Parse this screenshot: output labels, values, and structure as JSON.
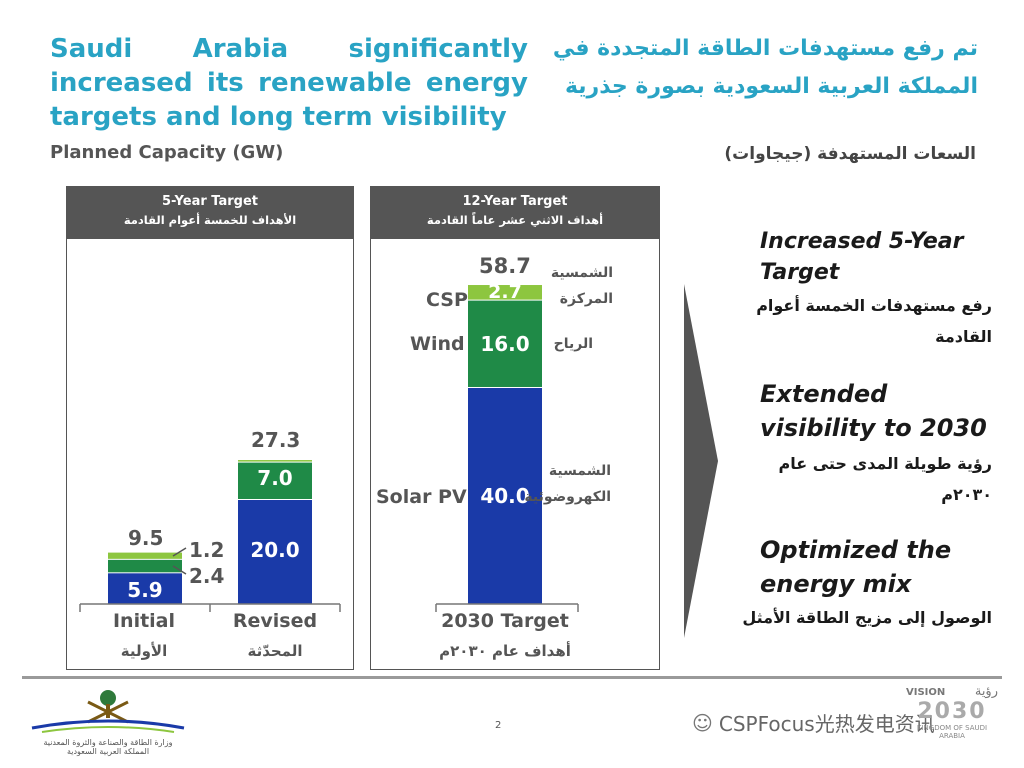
{
  "title_en": "Saudi Arabia significantly increased its renewable energy targets and long term visibility",
  "title_ar": "تم رفع مستهدفات الطاقة المتجددة في المملكة العربية السعودية بصورة جذرية",
  "subtitle_en": "Planned Capacity (GW)",
  "subtitle_ar": "السعات المستهدفة (جيجاوات)",
  "panels": {
    "five_year": {
      "title_en": "5-Year Target",
      "title_ar": "الأهداف للخمسة أعوام القادمة"
    },
    "twelve_year": {
      "title_en": "12-Year Target",
      "title_ar": "أهداف الاثني عشر عاماً القادمة"
    }
  },
  "chart_data": [
    {
      "type": "bar",
      "stacked": true,
      "categories": [
        "Initial",
        "Revised"
      ],
      "categories_ar": [
        "الأولية",
        "المحدّثة"
      ],
      "series": [
        {
          "values": [
            5.9,
            20.0
          ],
          "labels": [
            "5.9",
            "20.0"
          ],
          "color": "#1a3aa8"
        },
        {
          "values": [
            2.4,
            7.0
          ],
          "labels": [
            "2.4",
            "7.0"
          ],
          "color": "#1f8a47"
        },
        {
          "values": [
            1.2,
            0.3
          ],
          "labels": [
            "1.2",
            ""
          ],
          "color": "#8dc63f"
        }
      ],
      "totals": [
        "9.5",
        "27.3"
      ]
    },
    {
      "type": "bar",
      "stacked": true,
      "categories": [
        "2030 Target"
      ],
      "categories_ar": [
        "أهداف عام ٢٠٣٠م"
      ],
      "series": [
        {
          "name": "Solar PV",
          "name_ar": "الشمسية الكهروضوئية",
          "values": [
            40.0
          ],
          "labels": [
            "40.0"
          ],
          "color": "#1a3aa8"
        },
        {
          "name": "Wind",
          "name_ar": "الرياح",
          "values": [
            16.0
          ],
          "labels": [
            "16.0"
          ],
          "color": "#1f8a47"
        },
        {
          "name": "CSP",
          "name_ar": "الشمسية المركزة",
          "values": [
            2.7
          ],
          "labels": [
            "2.7"
          ],
          "color": "#8dc63f"
        }
      ],
      "totals": [
        "58.7"
      ]
    }
  ],
  "points": [
    {
      "en": "Increased 5-Year Target",
      "ar": "رفع مستهدفات الخمسة أعوام القادمة"
    },
    {
      "en": "Extended visibility to 2030",
      "ar": "رؤية طويلة المدى حتى عام ٢٠٣٠م"
    },
    {
      "en": "Optimized the energy mix",
      "ar": "الوصول إلى مزيج الطاقة الأمثل"
    }
  ],
  "footer": {
    "page_number": "2",
    "ministry_ar_1": "وزارة الطاقة والصناعة والثروة المعدنية",
    "ministry_ar_2": "المملكة العربية السعودية",
    "watermark": "CSPFocus光热发电资讯",
    "vision_en": "VISION",
    "vision_year": "2030",
    "vision_ar": "رؤية",
    "vision_caption": "KINGDOM OF SAUDI ARABIA"
  },
  "colors": {
    "accent": "#29a3c4",
    "solar": "#1a3aa8",
    "wind": "#1f8a47",
    "csp": "#8dc63f",
    "header": "#555555"
  }
}
